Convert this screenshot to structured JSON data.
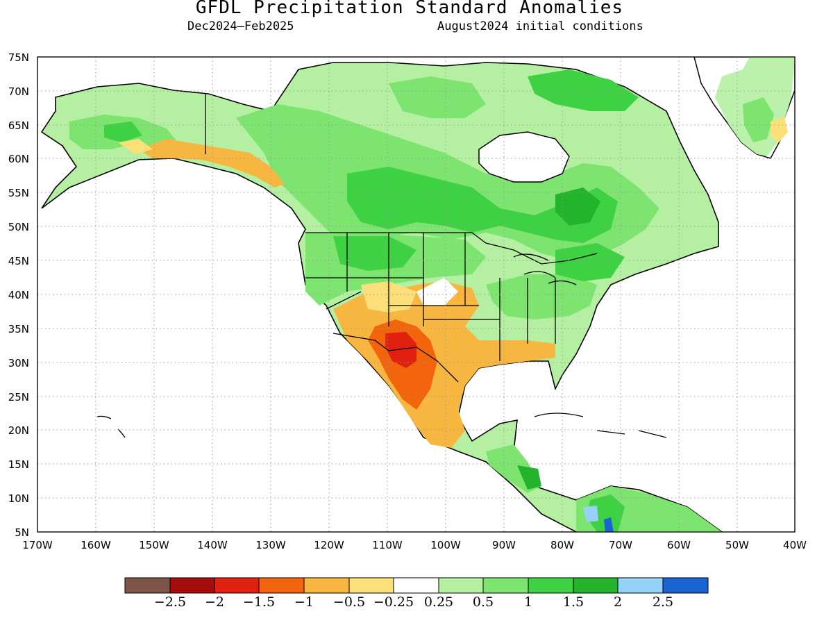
{
  "title": "GFDL Precipitation Standard Anomalies",
  "period": "Dec2024–Feb2025",
  "initial_conditions": "August2024 initial conditions",
  "axes": {
    "lon_labels": [
      "170W",
      "160W",
      "150W",
      "140W",
      "130W",
      "120W",
      "110W",
      "100W",
      "90W",
      "80W",
      "70W",
      "60W",
      "50W",
      "40W"
    ],
    "lat_labels": [
      "75N",
      "70N",
      "65N",
      "60N",
      "55N",
      "50N",
      "45N",
      "40N",
      "35N",
      "30N",
      "25N",
      "20N",
      "15N",
      "10N",
      "5N"
    ]
  },
  "colorbar": {
    "colors": [
      "#7d5447",
      "#a50d0d",
      "#e0210f",
      "#f2650c",
      "#f6b63f",
      "#fbe07a",
      "#ffffff",
      "#b5f0a2",
      "#7ce46f",
      "#3ed143",
      "#24b42c",
      "#96d1f8",
      "#1963d2"
    ],
    "labels": [
      "−2.5",
      "−2",
      "−1.5",
      "−1",
      "−0.5",
      "−0.25",
      "0.25",
      "0.5",
      "1",
      "1.5",
      "2",
      "2.5"
    ]
  },
  "colors": {
    "land_outline": "#000000",
    "grid": "#999999"
  }
}
